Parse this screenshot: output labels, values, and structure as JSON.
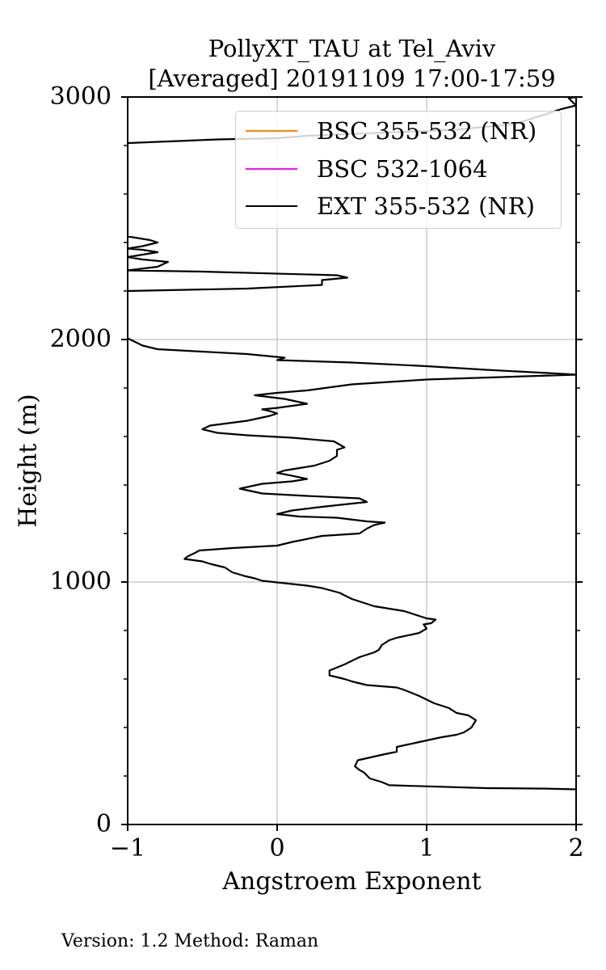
{
  "chart_data": {
    "type": "line",
    "title": [
      "PollyXT_TAU at Tel_Aviv",
      "[Averaged] 20191109 17:00-17:59"
    ],
    "xlabel": "Angstroem Exponent",
    "ylabel": "Height (m)",
    "xlim": [
      -1,
      2
    ],
    "ylim": [
      0,
      3000
    ],
    "x_ticks": [
      "−1",
      "0",
      "1",
      "2"
    ],
    "x_tick_values": [
      -1,
      0,
      1,
      2
    ],
    "y_ticks": [
      "0",
      "1000",
      "2000",
      "3000"
    ],
    "y_tick_values": [
      0,
      1000,
      2000,
      3000
    ],
    "y_minor_step": 200,
    "grid": true,
    "legend_position": "upper-right",
    "series": [
      {
        "name": "BSC 355-532 (NR)",
        "color": "#ff7f0e",
        "points": []
      },
      {
        "name": "BSC 532-1064",
        "color": "#ee11ee",
        "points": []
      },
      {
        "name": "EXT 355-532 (NR)",
        "color": "#000000",
        "points": [
          [
            2.0,
            145
          ],
          [
            1.8,
            148
          ],
          [
            1.4,
            150
          ],
          [
            0.75,
            162
          ],
          [
            0.7,
            175
          ],
          [
            0.62,
            190
          ],
          [
            0.58,
            215
          ],
          [
            0.55,
            225
          ],
          [
            0.52,
            240
          ],
          [
            0.54,
            265
          ],
          [
            0.72,
            290
          ],
          [
            0.8,
            300
          ],
          [
            0.8,
            320
          ],
          [
            0.95,
            340
          ],
          [
            1.1,
            360
          ],
          [
            1.2,
            370
          ],
          [
            1.25,
            380
          ],
          [
            1.3,
            400
          ],
          [
            1.33,
            430
          ],
          [
            1.28,
            450
          ],
          [
            1.2,
            460
          ],
          [
            1.15,
            480
          ],
          [
            1.05,
            500
          ],
          [
            0.95,
            530
          ],
          [
            0.85,
            555
          ],
          [
            0.8,
            565
          ],
          [
            0.6,
            575
          ],
          [
            0.5,
            590
          ],
          [
            0.45,
            600
          ],
          [
            0.35,
            615
          ],
          [
            0.35,
            635
          ],
          [
            0.45,
            660
          ],
          [
            0.55,
            690
          ],
          [
            0.65,
            710
          ],
          [
            0.68,
            720
          ],
          [
            0.7,
            740
          ],
          [
            0.75,
            760
          ],
          [
            0.8,
            770
          ],
          [
            0.95,
            790
          ],
          [
            1.0,
            808
          ],
          [
            0.98,
            825
          ],
          [
            1.03,
            830
          ],
          [
            1.06,
            845
          ],
          [
            1.0,
            850
          ],
          [
            0.85,
            880
          ],
          [
            0.65,
            900
          ],
          [
            0.5,
            930
          ],
          [
            0.45,
            945
          ],
          [
            0.42,
            955
          ],
          [
            0.3,
            975
          ],
          [
            0.2,
            985
          ],
          [
            0.05,
            995
          ],
          [
            -0.1,
            1005
          ],
          [
            -0.15,
            1015
          ],
          [
            -0.22,
            1025
          ],
          [
            -0.3,
            1040
          ],
          [
            -0.35,
            1060
          ],
          [
            -0.45,
            1075
          ],
          [
            -0.5,
            1085
          ],
          [
            -0.62,
            1095
          ],
          [
            -0.6,
            1105
          ],
          [
            -0.55,
            1120
          ],
          [
            -0.52,
            1130
          ],
          [
            -0.3,
            1140
          ],
          [
            0.0,
            1150
          ],
          [
            0.1,
            1165
          ],
          [
            0.3,
            1190
          ],
          [
            0.55,
            1200
          ],
          [
            0.6,
            1220
          ],
          [
            0.65,
            1235
          ],
          [
            0.72,
            1245
          ],
          [
            0.6,
            1250
          ],
          [
            0.4,
            1265
          ],
          [
            0.15,
            1270
          ],
          [
            0.0,
            1280
          ],
          [
            0.1,
            1295
          ],
          [
            0.3,
            1310
          ],
          [
            0.6,
            1330
          ],
          [
            0.55,
            1345
          ],
          [
            0.2,
            1355
          ],
          [
            -0.1,
            1365
          ],
          [
            -0.25,
            1385
          ],
          [
            -0.1,
            1405
          ],
          [
            0.1,
            1415
          ],
          [
            0.2,
            1425
          ],
          [
            0.1,
            1438
          ],
          [
            0.0,
            1450
          ],
          [
            0.05,
            1460
          ],
          [
            0.15,
            1470
          ],
          [
            0.25,
            1480
          ],
          [
            0.35,
            1500
          ],
          [
            0.4,
            1520
          ],
          [
            0.4,
            1545
          ],
          [
            0.45,
            1555
          ],
          [
            0.38,
            1580
          ],
          [
            0.1,
            1595
          ],
          [
            -0.2,
            1605
          ],
          [
            -0.4,
            1615
          ],
          [
            -0.5,
            1630
          ],
          [
            -0.45,
            1645
          ],
          [
            -0.2,
            1665
          ],
          [
            -0.05,
            1685
          ],
          [
            0.0,
            1695
          ],
          [
            -0.05,
            1705
          ],
          [
            -0.1,
            1712
          ],
          [
            0.0,
            1718
          ],
          [
            0.2,
            1735
          ],
          [
            0.05,
            1755
          ],
          [
            -0.15,
            1770
          ],
          [
            0.0,
            1780
          ],
          [
            0.2,
            1790
          ],
          [
            0.5,
            1815
          ],
          [
            1.0,
            1835
          ],
          [
            2.0,
            1855
          ],
          [
            1.8,
            1862
          ],
          [
            1.4,
            1875
          ],
          [
            1.0,
            1890
          ],
          [
            0.5,
            1905
          ],
          [
            0.0,
            1915
          ],
          [
            0.05,
            1925
          ],
          [
            -0.2,
            1940
          ],
          [
            -0.5,
            1950
          ],
          [
            -0.8,
            1960
          ],
          [
            -0.9,
            1975
          ],
          [
            -0.95,
            1990
          ],
          [
            -1.0,
            2005
          ],
          [
            -1.05,
            2010
          ],
          [
            -1.0,
            2200
          ],
          [
            -0.2,
            2210
          ],
          [
            0.3,
            2225
          ],
          [
            0.3,
            2245
          ],
          [
            0.47,
            2255
          ],
          [
            0.4,
            2265
          ],
          [
            -0.5,
            2280
          ],
          [
            -1.0,
            2285
          ],
          [
            -0.8,
            2300
          ],
          [
            -0.73,
            2320
          ],
          [
            -0.9,
            2330
          ],
          [
            -1.0,
            2340
          ],
          [
            -0.8,
            2360
          ],
          [
            -0.9,
            2370
          ],
          [
            -1.0,
            2375
          ],
          [
            -0.9,
            2385
          ],
          [
            -0.8,
            2400
          ],
          [
            -0.85,
            2410
          ],
          [
            -0.9,
            2415
          ],
          [
            -1.0,
            2425
          ],
          [
            -1.0,
            2810
          ],
          [
            -0.6,
            2820
          ],
          [
            -0.4,
            2825
          ],
          [
            0.0,
            2830
          ],
          [
            0.2,
            2840
          ],
          [
            1.2,
            2865
          ],
          [
            1.6,
            2890
          ],
          [
            1.9,
            2950
          ],
          [
            2.0,
            2965
          ],
          [
            1.95,
            2995
          ],
          [
            2.0,
            3000
          ]
        ]
      }
    ]
  },
  "footer": "Version: 1.2  Method: Raman"
}
